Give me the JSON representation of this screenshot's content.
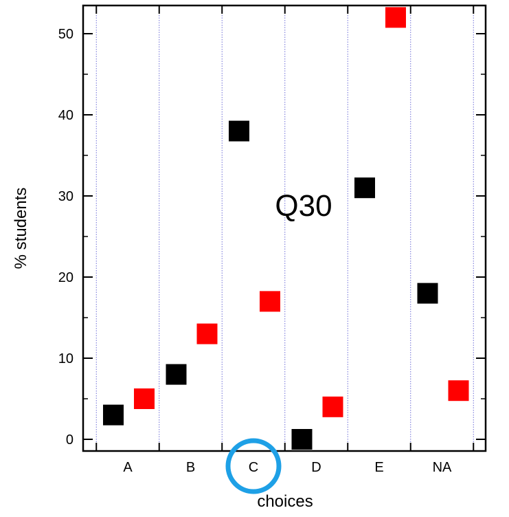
{
  "chart_data": {
    "type": "scatter",
    "categories": [
      "A",
      "B",
      "C",
      "D",
      "E",
      "NA"
    ],
    "series": [
      {
        "color": "#000000",
        "values": [
          3,
          8,
          38,
          0,
          31,
          18
        ]
      },
      {
        "color": "#ff0000",
        "values": [
          5,
          13,
          17,
          4,
          52,
          6
        ]
      }
    ],
    "title": "",
    "annotation": "Q30",
    "xlabel": "choices",
    "ylabel": "% students",
    "ylim": [
      -1.5,
      54
    ],
    "yticks": [
      0,
      10,
      20,
      30,
      40,
      50
    ],
    "highlighted_category": "C",
    "highlight_color": "#1ea0e6",
    "grid": "vertical dotted separators between categories",
    "legend": "none"
  }
}
